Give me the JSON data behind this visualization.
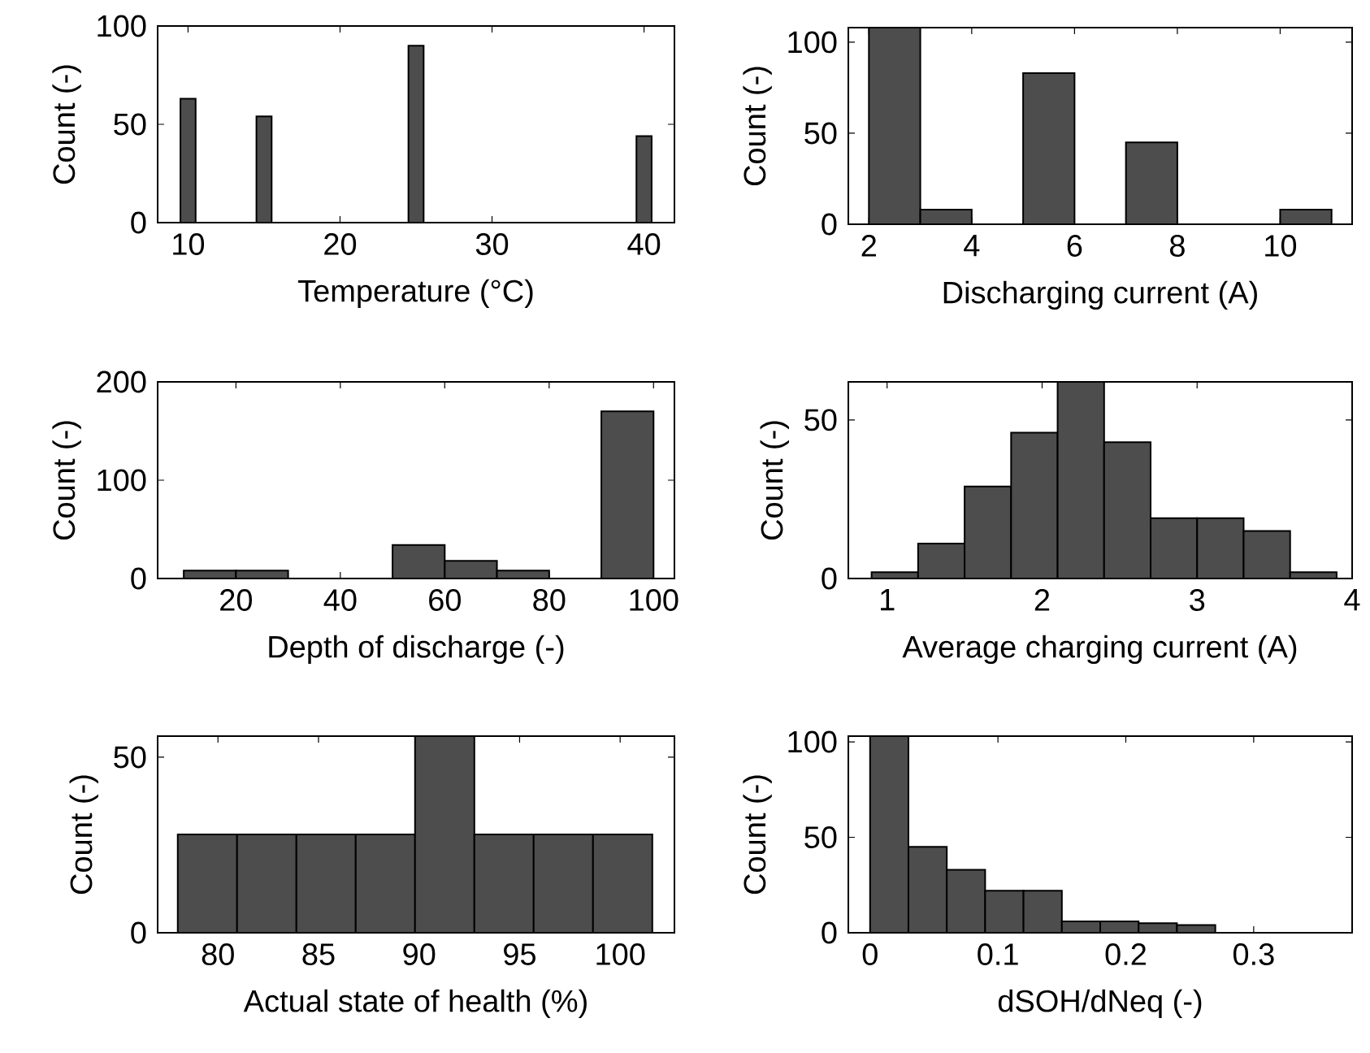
{
  "chart_data": [
    {
      "type": "histogram",
      "xlabel": "Temperature (°C)",
      "ylabel": "Count (-)",
      "color": "#4d4d4d",
      "bins": [
        9.5,
        10.5,
        11.5,
        12.5,
        13.5,
        14.5,
        15.5,
        16.5,
        17.5,
        18.5,
        19.5,
        20.5,
        21.5,
        22.5,
        23.5,
        24.5,
        25.5,
        26.5,
        27.5,
        28.5,
        29.5,
        30.5,
        31.5,
        32.5,
        33.5,
        34.5,
        35.5,
        36.5,
        37.5,
        38.5,
        39.5,
        40.5
      ],
      "values": [
        63,
        0,
        0,
        0,
        0,
        54,
        0,
        0,
        0,
        0,
        0,
        0,
        0,
        0,
        0,
        90,
        0,
        0,
        0,
        0,
        0,
        0,
        0,
        0,
        0,
        0,
        0,
        0,
        0,
        0,
        44
      ],
      "xlim": [
        8,
        42
      ],
      "ylim": [
        0,
        100
      ],
      "xticks": [
        10,
        20,
        30,
        40
      ],
      "yticks": [
        0,
        50,
        100
      ]
    },
    {
      "type": "histogram",
      "xlabel": "Discharging current (A)",
      "ylabel": "Count (-)",
      "color": "#4d4d4d",
      "bins": [
        2,
        3,
        4,
        5,
        6,
        7,
        8,
        9,
        10,
        11
      ],
      "values": [
        108,
        8,
        0,
        83,
        0,
        45,
        0,
        0,
        8
      ],
      "xlim": [
        1.6,
        11.4
      ],
      "ylim": [
        0,
        108
      ],
      "xticks": [
        2,
        4,
        6,
        8,
        10
      ],
      "yticks": [
        0,
        50,
        100
      ]
    },
    {
      "type": "histogram",
      "xlabel": "Depth of discharge (-)",
      "ylabel": "Count (-)",
      "color": "#4d4d4d",
      "bins": [
        10,
        20,
        30,
        40,
        50,
        60,
        70,
        80,
        90,
        100
      ],
      "values": [
        8,
        8,
        0,
        0,
        34,
        18,
        8,
        0,
        170
      ],
      "xlim": [
        5,
        104
      ],
      "ylim": [
        0,
        200
      ],
      "xticks": [
        20,
        40,
        60,
        80,
        100
      ],
      "yticks": [
        0,
        100,
        200
      ]
    },
    {
      "type": "histogram",
      "xlabel": "Average charging current (A)",
      "ylabel": "Count (-)",
      "color": "#4d4d4d",
      "bins": [
        0.9,
        1.2,
        1.5,
        1.8,
        2.1,
        2.4,
        2.7,
        3.0,
        3.3,
        3.6,
        3.9
      ],
      "values": [
        2,
        11,
        29,
        46,
        62,
        43,
        19,
        19,
        15,
        2
      ],
      "xlim": [
        0.75,
        4
      ],
      "ylim": [
        0,
        62
      ],
      "xticks": [
        1,
        2,
        3,
        4
      ],
      "yticks": [
        0,
        50
      ]
    },
    {
      "type": "histogram",
      "xlabel": "Actual state of health (%)",
      "ylabel": "Count (-)",
      "color": "#4d4d4d",
      "bins": [
        78,
        80.95,
        83.9,
        86.85,
        89.8,
        92.75,
        95.7,
        98.65,
        101.6
      ],
      "values": [
        28,
        28,
        28,
        28,
        56,
        28,
        28,
        28
      ],
      "xlim": [
        77,
        102.7
      ],
      "ylim": [
        0,
        56
      ],
      "xticks": [
        80,
        85,
        90,
        95,
        100
      ],
      "yticks": [
        0,
        50
      ]
    },
    {
      "type": "histogram",
      "xlabel": "dSOH/dNeq (-)",
      "ylabel": "Count (-)",
      "color": "#4d4d4d",
      "bins": [
        0,
        0.03,
        0.06,
        0.09,
        0.12,
        0.15,
        0.18,
        0.21,
        0.24,
        0.27
      ],
      "values": [
        103,
        45,
        33,
        22,
        22,
        6,
        6,
        5,
        4
      ],
      "xlim": [
        -0.017,
        0.377
      ],
      "ylim": [
        0,
        103
      ],
      "xticks": [
        0,
        0.1,
        0.2,
        0.3
      ],
      "yticks": [
        0,
        50,
        100
      ]
    }
  ]
}
